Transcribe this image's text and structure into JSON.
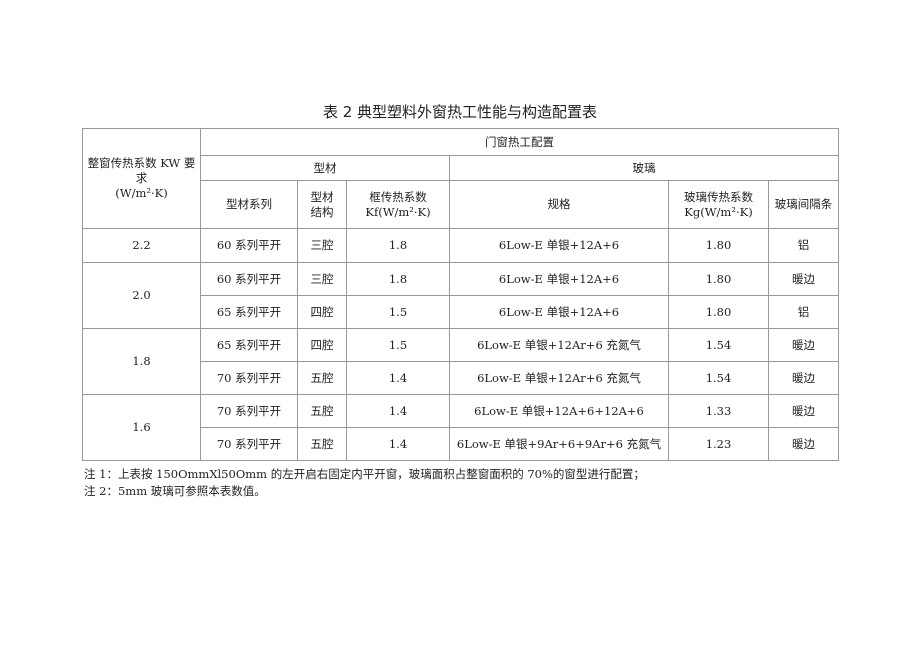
{
  "title": "表 2 典型塑料外窗热工性能与构造配置表",
  "header": {
    "kw": "整窗传热系数 KW 要求",
    "kw_unit": "(W/m²·K)",
    "config": "门窗热工配置",
    "profile": "型材",
    "glass": "玻璃",
    "profile_series": "型材系列",
    "profile_structure": "型材结构",
    "kf": "框传热系数",
    "kf_unit": "Kf(W/m²·K)",
    "spec": "规格",
    "kg": "玻璃传热系数",
    "kg_unit": "Kg(W/m²·K)",
    "spacer": "玻璃间隔条"
  },
  "groups": [
    {
      "kw": "2.2",
      "rows": [
        [
          "60 系列平开",
          "三腔",
          "1.8",
          "6Low-E 单银+12A+6",
          "1.80",
          "铝"
        ]
      ]
    },
    {
      "kw": "2.0",
      "rows": [
        [
          "60 系列平开",
          "三腔",
          "1.8",
          "6Low-E 单银+12A+6",
          "1.80",
          "暖边"
        ],
        [
          "65 系列平开",
          "四腔",
          "1.5",
          "6Low-E 单银+12A+6",
          "1.80",
          "铝"
        ]
      ]
    },
    {
      "kw": "1.8",
      "rows": [
        [
          "65 系列平开",
          "四腔",
          "1.5",
          "6Low-E 单银+12Ar+6 充氮气",
          "1.54",
          "暖边"
        ],
        [
          "70 系列平开",
          "五腔",
          "1.4",
          "6Low-E 单银+12Ar+6 充氮气",
          "1.54",
          "暖边"
        ]
      ]
    },
    {
      "kw": "1.6",
      "rows": [
        [
          "70 系列平开",
          "五腔",
          "1.4",
          "6Low-E 单银+12A+6+12A+6",
          "1.33",
          "暖边"
        ],
        [
          "70 系列平开",
          "五腔",
          "1.4",
          "6Low-E 单银+9Ar+6+9Ar+6 充氮气",
          "1.23",
          "暖边"
        ]
      ]
    }
  ],
  "notes": [
    "注 1：上表按 150OmmXl50Omm 的左开启右固定内平开窗，玻璃面积占整窗面积的 70%的窗型进行配置；",
    "注 2：5mm 玻璃可参照本表数值。"
  ]
}
